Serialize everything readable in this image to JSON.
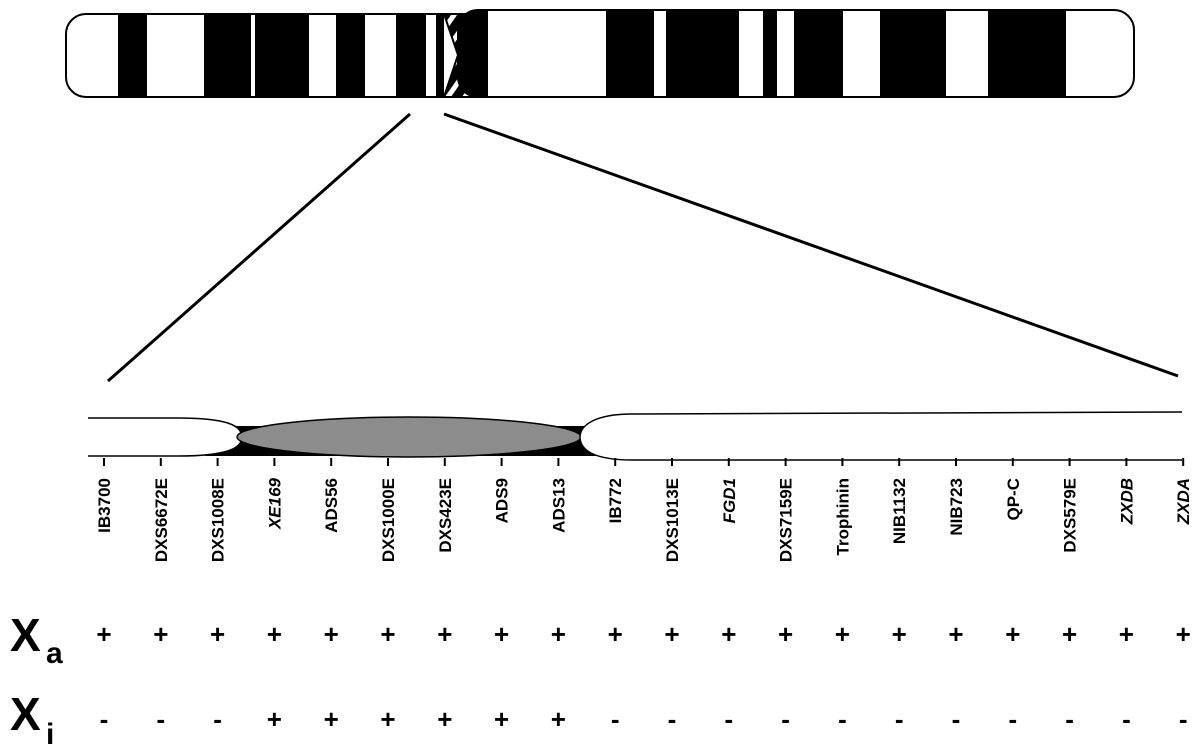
{
  "markers": [
    {
      "name": "IB3700",
      "italic": false,
      "xa": "+",
      "xi": "-"
    },
    {
      "name": "DXS6672E",
      "italic": false,
      "xa": "+",
      "xi": "-"
    },
    {
      "name": "DXS1008E",
      "italic": false,
      "xa": "+",
      "xi": "-"
    },
    {
      "name": "XE169",
      "italic": true,
      "xa": "+",
      "xi": "+"
    },
    {
      "name": "ADS56",
      "italic": false,
      "xa": "+",
      "xi": "+"
    },
    {
      "name": "DXS1000E",
      "italic": false,
      "xa": "+",
      "xi": "+"
    },
    {
      "name": "DXS423E",
      "italic": false,
      "xa": "+",
      "xi": "+"
    },
    {
      "name": "ADS9",
      "italic": false,
      "xa": "+",
      "xi": "+"
    },
    {
      "name": "ADS13",
      "italic": false,
      "xa": "+",
      "xi": "+"
    },
    {
      "name": "IB772",
      "italic": false,
      "xa": "+",
      "xi": "-"
    },
    {
      "name": "DXS1013E",
      "italic": false,
      "xa": "+",
      "xi": "-"
    },
    {
      "name": "FGD1",
      "italic": true,
      "xa": "+",
      "xi": "-"
    },
    {
      "name": "DXS7159E",
      "italic": false,
      "xa": "+",
      "xi": "-"
    },
    {
      "name": "Trophinin",
      "italic": false,
      "xa": "+",
      "xi": "-"
    },
    {
      "name": "NIB1132",
      "italic": false,
      "xa": "+",
      "xi": "-"
    },
    {
      "name": "NIB723",
      "italic": false,
      "xa": "+",
      "xi": "-"
    },
    {
      "name": "QP-C",
      "italic": false,
      "xa": "+",
      "xi": "-"
    },
    {
      "name": "DXS579E",
      "italic": false,
      "xa": "+",
      "xi": "-"
    },
    {
      "name": "ZXDB",
      "italic": true,
      "xa": "+",
      "xi": "-"
    },
    {
      "name": "ZXDA",
      "italic": true,
      "xa": "+",
      "xi": "-"
    }
  ],
  "rows": {
    "xa": {
      "main": "X",
      "sub": "a"
    },
    "xi": {
      "main": "X",
      "sub": "i"
    }
  },
  "colors": {
    "band": "#000000",
    "highlight": "#8c8c8c",
    "outline": "#000000"
  }
}
